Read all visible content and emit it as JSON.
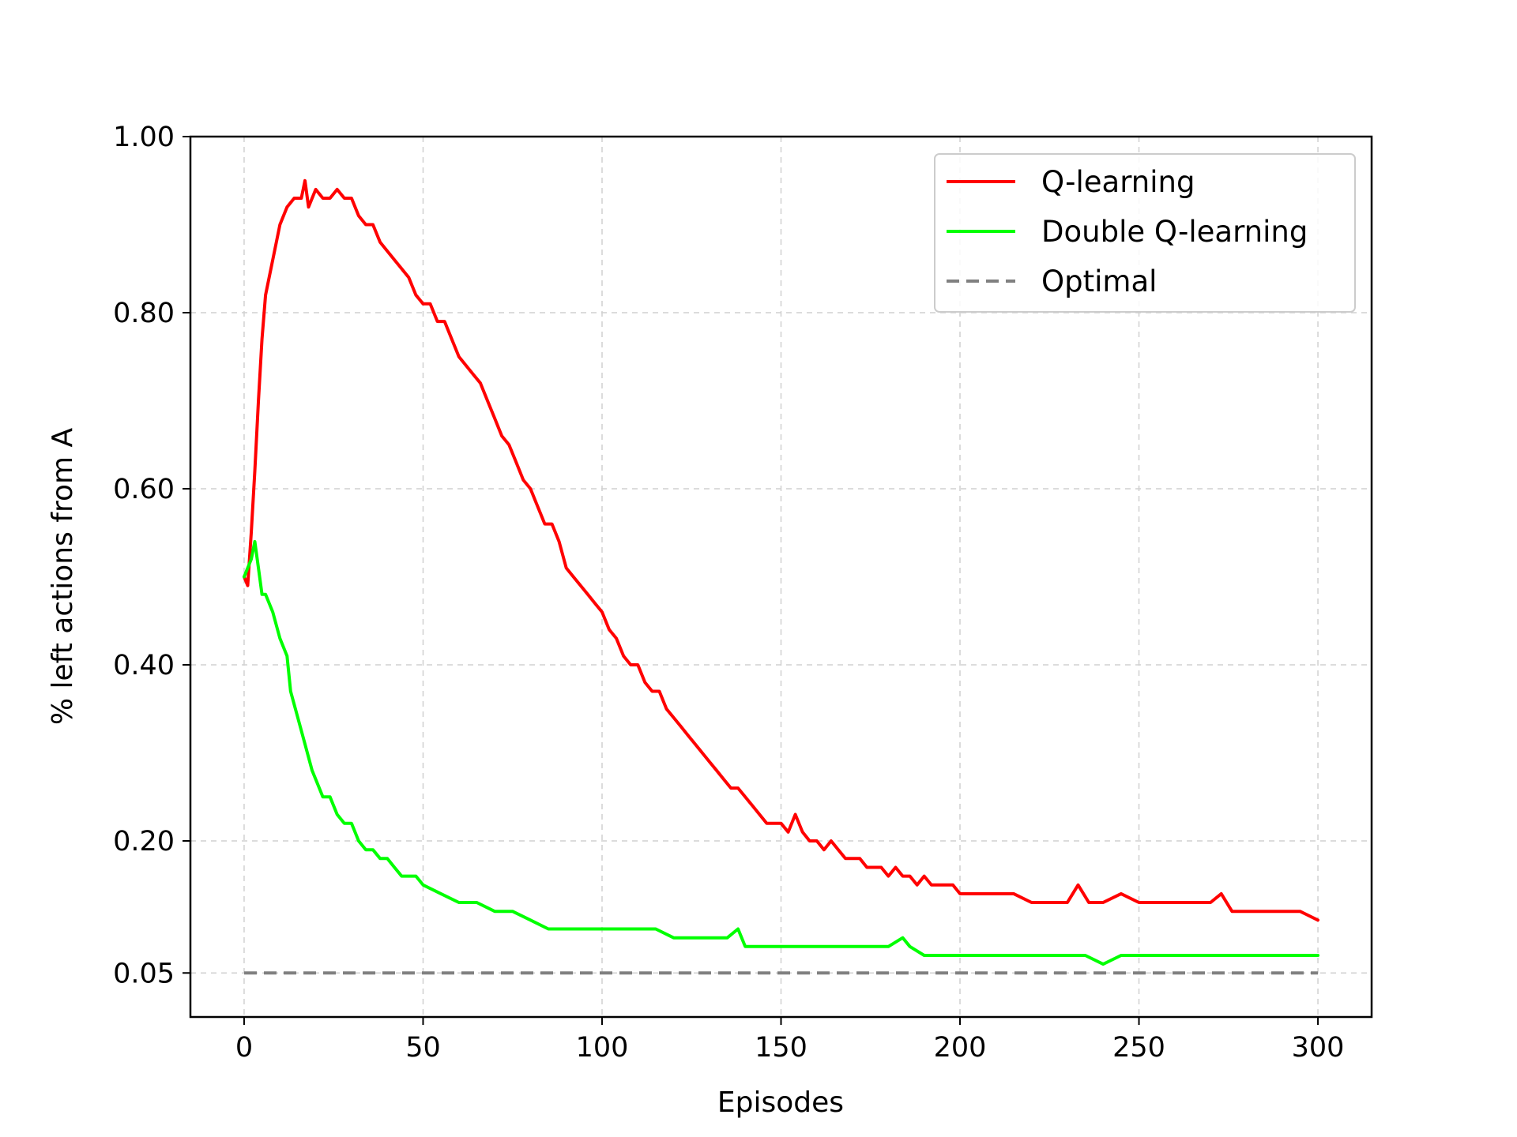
{
  "chart_data": {
    "type": "line",
    "title": "",
    "xlabel": "Episodes",
    "ylabel": "% left actions from A",
    "xlim": [
      -15,
      315
    ],
    "ylim": [
      0,
      1.0
    ],
    "xticks": [
      0,
      50,
      100,
      150,
      200,
      250,
      300
    ],
    "xtick_labels": [
      "0",
      "50",
      "100",
      "150",
      "200",
      "250",
      "300"
    ],
    "yticks": [
      0.05,
      0.2,
      0.4,
      0.6,
      0.8,
      1.0
    ],
    "ytick_labels": [
      "0.05",
      "0.20",
      "0.40",
      "0.60",
      "0.80",
      "1.00"
    ],
    "grid": true,
    "legend_position": "top-right",
    "series": [
      {
        "name": "Q-learning",
        "color": "#ff0000",
        "style": "solid",
        "points": [
          [
            0,
            0.5
          ],
          [
            1,
            0.49
          ],
          [
            2,
            0.55
          ],
          [
            3,
            0.62
          ],
          [
            4,
            0.7
          ],
          [
            5,
            0.77
          ],
          [
            6,
            0.82
          ],
          [
            8,
            0.86
          ],
          [
            10,
            0.9
          ],
          [
            12,
            0.92
          ],
          [
            14,
            0.93
          ],
          [
            16,
            0.93
          ],
          [
            17,
            0.95
          ],
          [
            18,
            0.92
          ],
          [
            20,
            0.94
          ],
          [
            22,
            0.93
          ],
          [
            24,
            0.93
          ],
          [
            26,
            0.94
          ],
          [
            28,
            0.93
          ],
          [
            30,
            0.93
          ],
          [
            32,
            0.91
          ],
          [
            34,
            0.9
          ],
          [
            36,
            0.9
          ],
          [
            38,
            0.88
          ],
          [
            40,
            0.87
          ],
          [
            42,
            0.86
          ],
          [
            44,
            0.85
          ],
          [
            46,
            0.84
          ],
          [
            48,
            0.82
          ],
          [
            50,
            0.81
          ],
          [
            52,
            0.81
          ],
          [
            54,
            0.79
          ],
          [
            56,
            0.79
          ],
          [
            58,
            0.77
          ],
          [
            60,
            0.75
          ],
          [
            62,
            0.74
          ],
          [
            64,
            0.73
          ],
          [
            66,
            0.72
          ],
          [
            68,
            0.7
          ],
          [
            70,
            0.68
          ],
          [
            72,
            0.66
          ],
          [
            74,
            0.65
          ],
          [
            76,
            0.63
          ],
          [
            78,
            0.61
          ],
          [
            80,
            0.6
          ],
          [
            82,
            0.58
          ],
          [
            84,
            0.56
          ],
          [
            86,
            0.56
          ],
          [
            88,
            0.54
          ],
          [
            90,
            0.51
          ],
          [
            92,
            0.5
          ],
          [
            94,
            0.49
          ],
          [
            96,
            0.48
          ],
          [
            98,
            0.47
          ],
          [
            100,
            0.46
          ],
          [
            102,
            0.44
          ],
          [
            104,
            0.43
          ],
          [
            106,
            0.41
          ],
          [
            108,
            0.4
          ],
          [
            110,
            0.4
          ],
          [
            112,
            0.38
          ],
          [
            114,
            0.37
          ],
          [
            116,
            0.37
          ],
          [
            118,
            0.35
          ],
          [
            120,
            0.34
          ],
          [
            122,
            0.33
          ],
          [
            124,
            0.32
          ],
          [
            126,
            0.31
          ],
          [
            128,
            0.3
          ],
          [
            130,
            0.29
          ],
          [
            132,
            0.28
          ],
          [
            134,
            0.27
          ],
          [
            136,
            0.26
          ],
          [
            138,
            0.26
          ],
          [
            140,
            0.25
          ],
          [
            142,
            0.24
          ],
          [
            144,
            0.23
          ],
          [
            146,
            0.22
          ],
          [
            148,
            0.22
          ],
          [
            150,
            0.22
          ],
          [
            152,
            0.21
          ],
          [
            154,
            0.23
          ],
          [
            156,
            0.21
          ],
          [
            158,
            0.2
          ],
          [
            160,
            0.2
          ],
          [
            162,
            0.19
          ],
          [
            164,
            0.2
          ],
          [
            166,
            0.19
          ],
          [
            168,
            0.18
          ],
          [
            170,
            0.18
          ],
          [
            172,
            0.18
          ],
          [
            174,
            0.17
          ],
          [
            176,
            0.17
          ],
          [
            178,
            0.17
          ],
          [
            180,
            0.16
          ],
          [
            182,
            0.17
          ],
          [
            184,
            0.16
          ],
          [
            186,
            0.16
          ],
          [
            188,
            0.15
          ],
          [
            190,
            0.16
          ],
          [
            192,
            0.15
          ],
          [
            194,
            0.15
          ],
          [
            196,
            0.15
          ],
          [
            198,
            0.15
          ],
          [
            200,
            0.14
          ],
          [
            205,
            0.14
          ],
          [
            210,
            0.14
          ],
          [
            215,
            0.14
          ],
          [
            220,
            0.13
          ],
          [
            225,
            0.13
          ],
          [
            230,
            0.13
          ],
          [
            233,
            0.15
          ],
          [
            236,
            0.13
          ],
          [
            240,
            0.13
          ],
          [
            245,
            0.14
          ],
          [
            250,
            0.13
          ],
          [
            255,
            0.13
          ],
          [
            260,
            0.13
          ],
          [
            265,
            0.13
          ],
          [
            270,
            0.13
          ],
          [
            273,
            0.14
          ],
          [
            276,
            0.12
          ],
          [
            280,
            0.12
          ],
          [
            285,
            0.12
          ],
          [
            290,
            0.12
          ],
          [
            295,
            0.12
          ],
          [
            300,
            0.11
          ]
        ]
      },
      {
        "name": "Double Q-learning",
        "color": "#00ff00",
        "style": "solid",
        "points": [
          [
            0,
            0.5
          ],
          [
            2,
            0.52
          ],
          [
            3,
            0.54
          ],
          [
            4,
            0.51
          ],
          [
            5,
            0.48
          ],
          [
            6,
            0.48
          ],
          [
            8,
            0.46
          ],
          [
            10,
            0.43
          ],
          [
            12,
            0.41
          ],
          [
            13,
            0.37
          ],
          [
            15,
            0.34
          ],
          [
            17,
            0.31
          ],
          [
            19,
            0.28
          ],
          [
            20,
            0.27
          ],
          [
            22,
            0.25
          ],
          [
            24,
            0.25
          ],
          [
            26,
            0.23
          ],
          [
            28,
            0.22
          ],
          [
            30,
            0.22
          ],
          [
            32,
            0.2
          ],
          [
            34,
            0.19
          ],
          [
            36,
            0.19
          ],
          [
            38,
            0.18
          ],
          [
            40,
            0.18
          ],
          [
            42,
            0.17
          ],
          [
            44,
            0.16
          ],
          [
            46,
            0.16
          ],
          [
            48,
            0.16
          ],
          [
            50,
            0.15
          ],
          [
            55,
            0.14
          ],
          [
            60,
            0.13
          ],
          [
            65,
            0.13
          ],
          [
            70,
            0.12
          ],
          [
            75,
            0.12
          ],
          [
            80,
            0.11
          ],
          [
            85,
            0.1
          ],
          [
            90,
            0.1
          ],
          [
            95,
            0.1
          ],
          [
            100,
            0.1
          ],
          [
            105,
            0.1
          ],
          [
            110,
            0.1
          ],
          [
            115,
            0.1
          ],
          [
            120,
            0.09
          ],
          [
            125,
            0.09
          ],
          [
            130,
            0.09
          ],
          [
            135,
            0.09
          ],
          [
            138,
            0.1
          ],
          [
            140,
            0.08
          ],
          [
            145,
            0.08
          ],
          [
            150,
            0.08
          ],
          [
            155,
            0.08
          ],
          [
            160,
            0.08
          ],
          [
            165,
            0.08
          ],
          [
            170,
            0.08
          ],
          [
            175,
            0.08
          ],
          [
            180,
            0.08
          ],
          [
            184,
            0.09
          ],
          [
            186,
            0.08
          ],
          [
            190,
            0.07
          ],
          [
            195,
            0.07
          ],
          [
            200,
            0.07
          ],
          [
            205,
            0.07
          ],
          [
            210,
            0.07
          ],
          [
            215,
            0.07
          ],
          [
            220,
            0.07
          ],
          [
            225,
            0.07
          ],
          [
            230,
            0.07
          ],
          [
            235,
            0.07
          ],
          [
            240,
            0.06
          ],
          [
            245,
            0.07
          ],
          [
            250,
            0.07
          ],
          [
            255,
            0.07
          ],
          [
            260,
            0.07
          ],
          [
            265,
            0.07
          ],
          [
            270,
            0.07
          ],
          [
            275,
            0.07
          ],
          [
            280,
            0.07
          ],
          [
            285,
            0.07
          ],
          [
            290,
            0.07
          ],
          [
            295,
            0.07
          ],
          [
            300,
            0.07
          ]
        ]
      },
      {
        "name": "Optimal",
        "color": "#808080",
        "style": "dashed",
        "points": [
          [
            0,
            0.05
          ],
          [
            300,
            0.05
          ]
        ]
      }
    ]
  }
}
